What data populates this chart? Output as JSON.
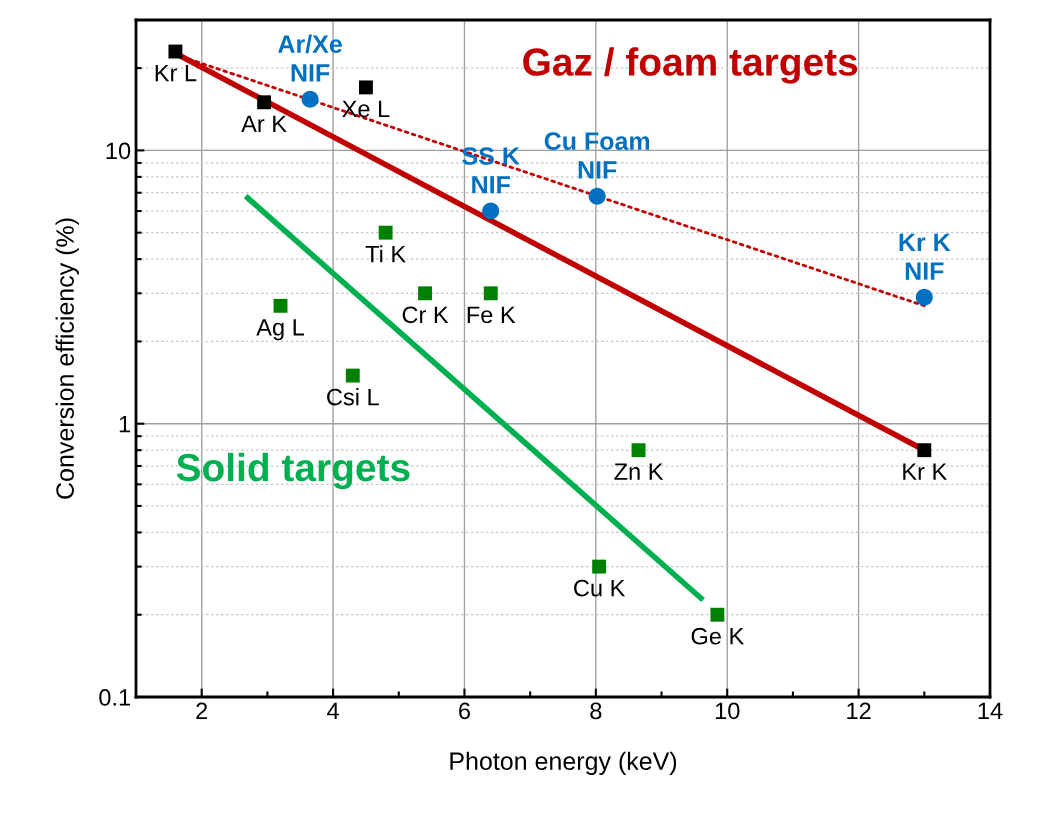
{
  "chart_data": {
    "type": "scatter",
    "xlabel": "Photon energy (keV)",
    "ylabel": "Conversion efficiency (%)",
    "log": "y",
    "grid": true,
    "xlim": [
      1,
      14
    ],
    "ylim": [
      0.1,
      30
    ],
    "xticks": [
      {
        "value": 1,
        "label": null
      },
      2,
      {
        "value": 3,
        "label": null
      },
      4,
      {
        "value": 5,
        "label": null
      },
      6,
      {
        "value": 7,
        "label": null
      },
      8,
      {
        "value": 9,
        "label": null
      },
      10,
      {
        "value": 11,
        "label": null
      },
      12,
      {
        "value": 13,
        "label": null
      },
      14
    ],
    "yticks": [
      0.1,
      {
        "value": 0.2,
        "label": null
      },
      {
        "value": 0.3,
        "label": null
      },
      {
        "value": 0.4,
        "label": null
      },
      {
        "value": 0.5,
        "label": null
      },
      {
        "value": 0.6,
        "label": null
      },
      {
        "value": 0.7,
        "label": null
      },
      {
        "value": 0.8,
        "label": null
      },
      {
        "value": 0.9,
        "label": null
      },
      1,
      {
        "value": 2,
        "label": null
      },
      {
        "value": 3,
        "label": null
      },
      {
        "value": 4,
        "label": null
      },
      {
        "value": 5,
        "label": null
      },
      {
        "value": 6,
        "label": null
      },
      {
        "value": 7,
        "label": null
      },
      {
        "value": 8,
        "label": null
      },
      {
        "value": 9,
        "label": null
      },
      10,
      {
        "value": 20,
        "label": null
      }
    ],
    "series": [
      {
        "type": "line",
        "name": "Gaz / foam targets",
        "color": "#c00000",
        "line_style": "solid",
        "marker": "none",
        "x": [
          1.7,
          13
        ],
        "values": [
          22,
          0.8
        ]
      },
      {
        "type": "line",
        "color": "#c00000",
        "line_style": "dotted",
        "marker": "none",
        "x": [
          1.7,
          13
        ],
        "values": [
          22,
          2.7
        ]
      },
      {
        "type": "line",
        "name": "Solid targets",
        "color": "#00b050",
        "line_style": "solid",
        "marker": "none",
        "x": [
          2.7,
          9.6
        ],
        "values": [
          6.7,
          0.23
        ]
      },
      {
        "color": "#000000",
        "marker": "square",
        "x": [
          1.6,
          2.95,
          4.5,
          13
        ],
        "values": [
          23,
          15,
          17,
          0.8
        ]
      },
      {
        "color": "#0070c0",
        "marker": "circle",
        "x": [
          3.65,
          6.4,
          8.02,
          13
        ],
        "values": [
          15.4,
          6,
          6.8,
          2.9
        ]
      },
      {
        "color": "#008000",
        "marker": "square",
        "x": [
          3.2,
          4.8,
          5.4,
          6.4,
          4.3,
          8.65,
          8.05,
          9.85
        ],
        "values": [
          2.7,
          5,
          3,
          3,
          1.5,
          0.8,
          0.3,
          0.2
        ]
      }
    ],
    "annotations": [
      {
        "text": "Kr L",
        "x": 1.6,
        "y": 23
      },
      {
        "text": "Ar K",
        "x": 2.95,
        "y": 15
      },
      {
        "text": "Xe L",
        "x": 4.5,
        "y": 17
      },
      {
        "text": "Kr K",
        "x": 13,
        "y": 0.8
      },
      {
        "text": "Ar/Xe\nNIF",
        "x": 3.65,
        "y": 15.4
      },
      {
        "text": "SS K\nNIF",
        "x": 6.4,
        "y": 6
      },
      {
        "text": "Cu Foam\nNIF",
        "x": 8.02,
        "y": 6.8
      },
      {
        "text": "Kr K\nNIF",
        "x": 13,
        "y": 2.9
      },
      {
        "text": "Ag L",
        "x": 3.2,
        "y": 2.7
      },
      {
        "text": "Ti K",
        "x": 4.8,
        "y": 5
      },
      {
        "text": "Cr K",
        "x": 5.4,
        "y": 3
      },
      {
        "text": "Fe K",
        "x": 6.4,
        "y": 3
      },
      {
        "text": "Csi L",
        "x": 4.3,
        "y": 1.5
      },
      {
        "text": "Zn K",
        "x": 8.65,
        "y": 0.8
      },
      {
        "text": "Cu K",
        "x": 8.05,
        "y": 0.3
      },
      {
        "text": "Ge K",
        "x": 9.85,
        "y": 0.2
      }
    ]
  }
}
